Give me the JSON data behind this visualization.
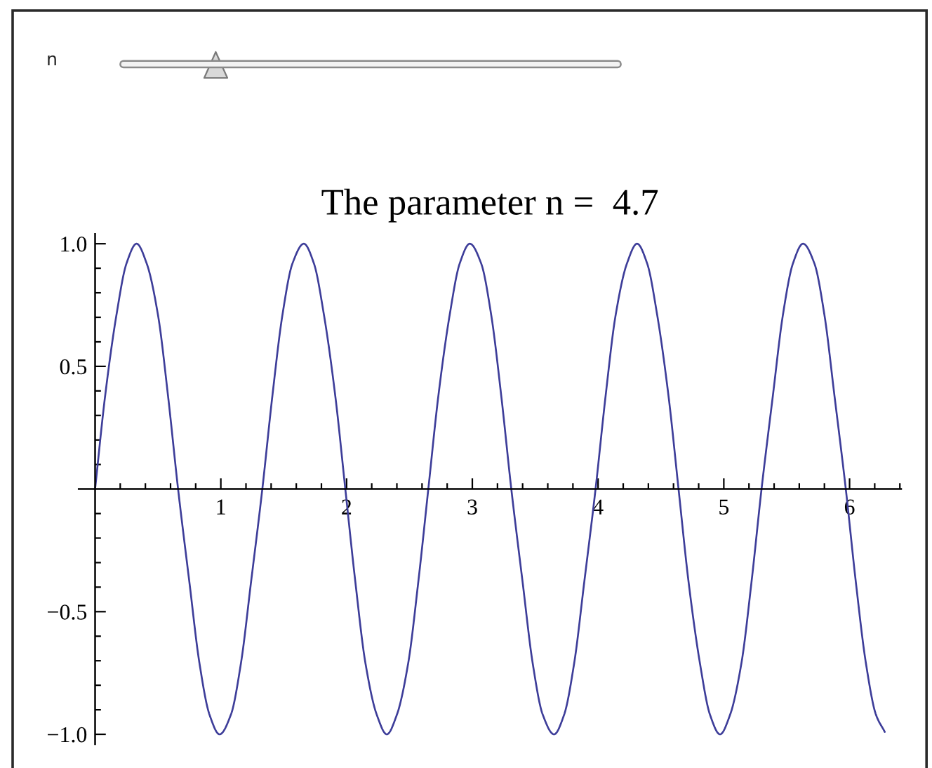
{
  "chart_data": {
    "type": "line",
    "title": "The parameter n =  4.7",
    "annotations": [
      "n"
    ],
    "x": [
      0,
      0.08,
      0.17,
      0.25,
      0.33,
      0.41,
      0.5,
      0.58,
      0.66,
      0.75,
      0.83,
      0.91,
      0.99,
      1.08,
      1.16,
      1.24,
      1.33,
      1.41,
      1.49,
      1.57,
      1.66,
      1.74,
      1.82,
      1.91,
      1.99,
      2.07,
      2.15,
      2.24,
      2.32,
      2.4,
      2.49,
      2.57,
      2.65,
      2.73,
      2.82,
      2.9,
      2.98,
      3.07,
      3.15,
      3.23,
      3.31,
      3.4,
      3.48,
      3.56,
      3.65,
      3.73,
      3.81,
      3.89,
      3.98,
      4.06,
      4.14,
      4.23,
      4.31,
      4.39,
      4.47,
      4.56,
      4.64,
      4.72,
      4.81,
      4.89,
      4.97,
      5.05,
      5.14,
      5.22,
      5.3,
      5.39,
      5.47,
      5.55,
      5.63,
      5.72,
      5.8,
      5.88,
      5.97,
      6.05,
      6.13,
      6.21,
      6.28
    ],
    "series": [
      {
        "color": "#3d3d99",
        "values": [
          0,
          0.38,
          0.71,
          0.92,
          1,
          0.92,
          0.71,
          0.38,
          0,
          -0.38,
          -0.71,
          -0.92,
          -1,
          -0.92,
          -0.71,
          -0.38,
          0,
          0.38,
          0.71,
          0.92,
          1,
          0.92,
          0.71,
          0.38,
          0,
          -0.38,
          -0.71,
          -0.92,
          -1,
          -0.92,
          -0.71,
          -0.38,
          0,
          0.38,
          0.71,
          0.92,
          1,
          0.92,
          0.71,
          0.38,
          0,
          -0.38,
          -0.71,
          -0.92,
          -1,
          -0.92,
          -0.71,
          -0.38,
          0,
          0.38,
          0.71,
          0.92,
          1,
          0.92,
          0.71,
          0.38,
          0,
          -0.38,
          -0.71,
          -0.92,
          -1,
          -0.92,
          -0.71,
          -0.38,
          0,
          0.38,
          0.71,
          0.92,
          1,
          0.92,
          0.71,
          0.38,
          0,
          -0.38,
          -0.71,
          -0.92,
          -0.99
        ]
      }
    ],
    "xlim": [
      -0.13,
      6.41
    ],
    "ylim": [
      -1.04,
      1.04
    ],
    "xticks": [
      {
        "value": 0.2,
        "label": null
      },
      {
        "value": 0.4,
        "label": null
      },
      {
        "value": 0.6,
        "label": null
      },
      {
        "value": 0.8,
        "label": null
      },
      1,
      {
        "value": 1.2,
        "label": null
      },
      {
        "value": 1.4,
        "label": null
      },
      {
        "value": 1.6,
        "label": null
      },
      {
        "value": 1.8,
        "label": null
      },
      2,
      {
        "value": 2.2,
        "label": null
      },
      {
        "value": 2.4,
        "label": null
      },
      {
        "value": 2.6,
        "label": null
      },
      {
        "value": 2.8,
        "label": null
      },
      3,
      {
        "value": 3.2,
        "label": null
      },
      {
        "value": 3.4,
        "label": null
      },
      {
        "value": 3.6,
        "label": null
      },
      {
        "value": 3.8,
        "label": null
      },
      4,
      {
        "value": 4.2,
        "label": null
      },
      {
        "value": 4.4,
        "label": null
      },
      {
        "value": 4.6,
        "label": null
      },
      {
        "value": 4.8,
        "label": null
      },
      5,
      {
        "value": 5.2,
        "label": null
      },
      {
        "value": 5.4,
        "label": null
      },
      {
        "value": 5.6,
        "label": null
      },
      {
        "value": 5.8,
        "label": null
      },
      6,
      {
        "value": 6.2,
        "label": null
      },
      {
        "value": 6.4,
        "label": null
      }
    ],
    "yticks": [
      {
        "value": -1,
        "label": "−1.0"
      },
      {
        "value": -0.9,
        "label": null
      },
      {
        "value": -0.8,
        "label": null
      },
      {
        "value": -0.7,
        "label": null
      },
      {
        "value": -0.6,
        "label": null
      },
      {
        "value": -0.5,
        "label": "−0.5"
      },
      {
        "value": -0.4,
        "label": null
      },
      {
        "value": -0.3,
        "label": null
      },
      {
        "value": -0.2,
        "label": null
      },
      {
        "value": -0.1,
        "label": null
      },
      {
        "value": 0.1,
        "label": null
      },
      {
        "value": 0.2,
        "label": null
      },
      {
        "value": 0.3,
        "label": null
      },
      {
        "value": 0.4,
        "label": null
      },
      0.5,
      {
        "value": 0.6,
        "label": null
      },
      {
        "value": 0.7,
        "label": null
      },
      {
        "value": 0.8,
        "label": null
      },
      {
        "value": 0.9,
        "label": null
      },
      {
        "value": 1,
        "label": "1.0"
      }
    ]
  }
}
